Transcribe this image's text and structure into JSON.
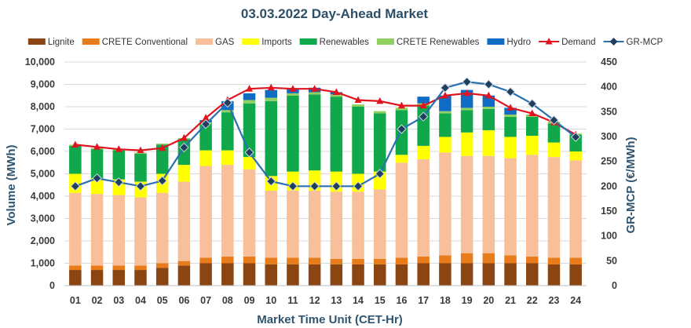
{
  "chart_data": {
    "type": "bar",
    "title": "03.03.2022  Day-Ahead Market",
    "xlabel": "Market Time Unit (CET-Hr)",
    "ylabel": "Volume (MWh)",
    "y2label": "GR-MCP (€/MWh)",
    "ylim": [
      0,
      10000
    ],
    "y2lim": [
      0,
      450
    ],
    "yticks": [
      "0",
      "1,000",
      "2,000",
      "3,000",
      "4,000",
      "5,000",
      "6,000",
      "7,000",
      "8,000",
      "9,000",
      "10,000"
    ],
    "y2ticks": [
      "0",
      "50",
      "100",
      "150",
      "200",
      "250",
      "300",
      "350",
      "400",
      "450"
    ],
    "categories": [
      "01",
      "02",
      "03",
      "04",
      "05",
      "06",
      "07",
      "08",
      "09",
      "10",
      "11",
      "12",
      "13",
      "14",
      "15",
      "16",
      "17",
      "18",
      "19",
      "20",
      "21",
      "22",
      "23",
      "24"
    ],
    "series": [
      {
        "name": "Lignite",
        "kind": "bar",
        "color": "#8b4513",
        "values": [
          700,
          700,
          700,
          700,
          800,
          900,
          1000,
          1000,
          1000,
          950,
          950,
          950,
          950,
          950,
          950,
          950,
          1000,
          1000,
          1000,
          1000,
          1000,
          1000,
          950,
          950
        ]
      },
      {
        "name": "CRETE Conventional",
        "kind": "bar",
        "color": "#e97c1a",
        "values": [
          200,
          200,
          200,
          200,
          200,
          200,
          250,
          300,
          300,
          300,
          300,
          300,
          250,
          250,
          250,
          300,
          300,
          350,
          450,
          450,
          350,
          300,
          300,
          300
        ]
      },
      {
        "name": "GAS",
        "kind": "bar",
        "color": "#f7c09a",
        "values": [
          3250,
          3200,
          3150,
          3050,
          3150,
          3550,
          4100,
          4100,
          3900,
          3000,
          3000,
          3000,
          3000,
          3000,
          3100,
          4250,
          4350,
          4600,
          4350,
          4350,
          4350,
          4550,
          4500,
          4350
        ]
      },
      {
        "name": "Imports",
        "kind": "bar",
        "color": "#ffff00",
        "values": [
          850,
          700,
          700,
          700,
          850,
          750,
          700,
          650,
          550,
          650,
          850,
          900,
          900,
          800,
          800,
          350,
          600,
          700,
          1050,
          1150,
          950,
          850,
          650,
          400
        ]
      },
      {
        "name": "Renewables",
        "kind": "bar",
        "color": "#10a84a",
        "values": [
          1250,
          1300,
          1300,
          1250,
          1300,
          1150,
          1200,
          1700,
          2400,
          3350,
          3400,
          3400,
          3350,
          3000,
          2600,
          2000,
          1800,
          1050,
          1000,
          950,
          900,
          850,
          850,
          750
        ]
      },
      {
        "name": "CRETE Renewables",
        "kind": "bar",
        "color": "#90cf60",
        "values": [
          50,
          50,
          50,
          50,
          50,
          50,
          50,
          100,
          150,
          150,
          100,
          100,
          100,
          100,
          100,
          100,
          100,
          100,
          100,
          100,
          100,
          100,
          80,
          50
        ]
      },
      {
        "name": "Hydro",
        "kind": "bar",
        "color": "#0f6cc4",
        "values": [
          0,
          0,
          0,
          0,
          0,
          0,
          100,
          400,
          300,
          350,
          200,
          200,
          100,
          0,
          0,
          0,
          300,
          700,
          800,
          500,
          300,
          0,
          0,
          0
        ]
      },
      {
        "name": "Demand",
        "kind": "line",
        "axis": "left",
        "color": "#e0141e",
        "marker": "triangle",
        "values": [
          6300,
          6200,
          6100,
          6050,
          6150,
          6600,
          7500,
          8300,
          8800,
          8850,
          8800,
          8800,
          8650,
          8300,
          8250,
          8050,
          8050,
          8500,
          8600,
          8500,
          7950,
          7700,
          7300,
          6750
        ]
      },
      {
        "name": "GR-MCP",
        "kind": "line",
        "axis": "right",
        "color": "#2a70b0",
        "marker": "diamond",
        "values": [
          200,
          216,
          208,
          200,
          211,
          278,
          325,
          368,
          268,
          210,
          200,
          200,
          200,
          200,
          225,
          315,
          340,
          398,
          410,
          405,
          390,
          366,
          333,
          299
        ]
      }
    ],
    "legend": "top"
  }
}
